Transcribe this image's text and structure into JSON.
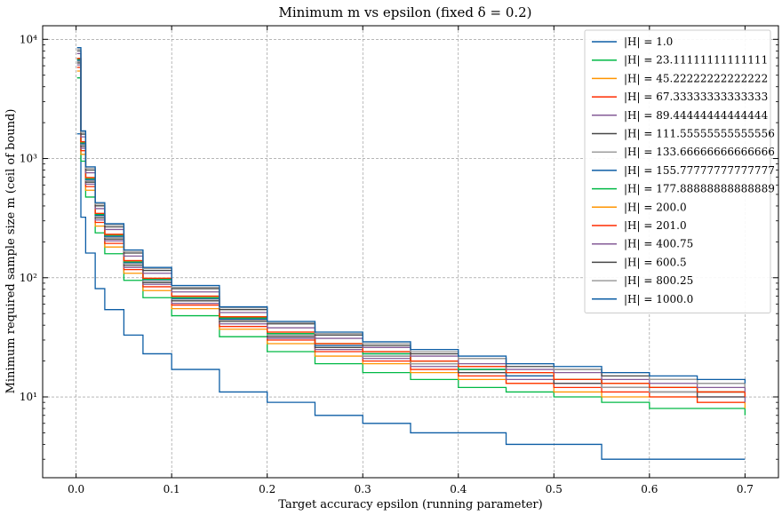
{
  "chart_data": {
    "type": "line",
    "title": "Minimum m vs epsilon (fixed δ = 0.2)",
    "xlabel": "Target accuracy epsilon (running parameter)",
    "ylabel": "Minimum required sample size m (ceil of bound)",
    "xlim": [
      -0.035,
      0.735
    ],
    "ylim": [
      2.1,
      13000
    ],
    "yscale": "log",
    "grid": true,
    "legend_position": "top-right",
    "x_ticks": [
      0.0,
      0.1,
      0.2,
      0.3,
      0.4,
      0.5,
      0.6,
      0.7
    ],
    "x_tick_labels": [
      "0.0",
      "0.1",
      "0.2",
      "0.3",
      "0.4",
      "0.5",
      "0.6",
      "0.7"
    ],
    "y_ticks": [
      10,
      100,
      1000,
      10000
    ],
    "y_tick_labels": [
      "10¹",
      "10²",
      "10³",
      "10⁴"
    ],
    "x": [
      0.001,
      0.005,
      0.01,
      0.02,
      0.03,
      0.05,
      0.07,
      0.1,
      0.15,
      0.2,
      0.25,
      0.3,
      0.35,
      0.4,
      0.45,
      0.5,
      0.55,
      0.6,
      0.65,
      0.7
    ],
    "series": [
      {
        "name": "|H| = 1.0",
        "color": "#0C5DA5",
        "values": [
          1610,
          322,
          161,
          81,
          54,
          33,
          23,
          17,
          11,
          9,
          7,
          6,
          5,
          5,
          4,
          4,
          3,
          3,
          3,
          3
        ]
      },
      {
        "name": "|H| = 23.11111111111111",
        "color": "#00B945",
        "values": [
          4750,
          950,
          475,
          238,
          159,
          95,
          68,
          48,
          32,
          24,
          19,
          16,
          14,
          12,
          11,
          10,
          9,
          8,
          8,
          7
        ]
      },
      {
        "name": "|H| = 45.22222222222222",
        "color": "#FF9500",
        "values": [
          5420,
          1084,
          542,
          271,
          181,
          109,
          78,
          55,
          37,
          28,
          22,
          19,
          16,
          14,
          13,
          11,
          10,
          10,
          9,
          8
        ]
      },
      {
        "name": "|H| = 67.33333333333333",
        "color": "#FF2C00",
        "values": [
          5820,
          1164,
          582,
          291,
          194,
          117,
          84,
          59,
          39,
          30,
          24,
          20,
          17,
          15,
          13,
          12,
          11,
          10,
          9,
          9
        ]
      },
      {
        "name": "|H| = 89.44444444444444",
        "color": "#845B97",
        "values": [
          6100,
          1220,
          610,
          305,
          204,
          122,
          88,
          61,
          41,
          31,
          25,
          21,
          18,
          16,
          14,
          13,
          12,
          11,
          10,
          9
        ]
      },
      {
        "name": "|H| = 111.55555555555556",
        "color": "#474747",
        "values": [
          6330,
          1266,
          633,
          317,
          211,
          127,
          91,
          64,
          43,
          32,
          26,
          22,
          19,
          16,
          15,
          13,
          12,
          11,
          10,
          10
        ]
      },
      {
        "name": "|H| = 133.66666666666666",
        "color": "#9E9E9E",
        "values": [
          6510,
          1302,
          651,
          326,
          217,
          131,
          93,
          66,
          44,
          33,
          27,
          22,
          19,
          17,
          15,
          14,
          12,
          11,
          11,
          10
        ]
      },
      {
        "name": "|H| = 155.77777777777777",
        "color": "#0C5DA5",
        "values": [
          6660,
          1332,
          666,
          333,
          222,
          134,
          96,
          67,
          45,
          34,
          27,
          23,
          20,
          17,
          15,
          14,
          13,
          12,
          11,
          10
        ]
      },
      {
        "name": "|H| = 177.88888888888889",
        "color": "#00B945",
        "values": [
          6790,
          1358,
          679,
          340,
          227,
          136,
          97,
          68,
          46,
          34,
          28,
          23,
          20,
          17,
          16,
          14,
          13,
          12,
          11,
          10
        ]
      },
      {
        "name": "|H| = 200.0",
        "color": "#FF9500",
        "values": [
          6910,
          1382,
          691,
          346,
          231,
          139,
          99,
          70,
          47,
          35,
          28,
          24,
          20,
          18,
          16,
          14,
          13,
          12,
          11,
          10
        ]
      },
      {
        "name": "|H| = 201.0",
        "color": "#FF2C00",
        "values": [
          6915,
          1383,
          692,
          346,
          231,
          139,
          99,
          70,
          47,
          35,
          28,
          24,
          20,
          18,
          16,
          14,
          13,
          12,
          11,
          10
        ]
      },
      {
        "name": "|H| = 400.75",
        "color": "#845B97",
        "values": [
          7600,
          1520,
          760,
          380,
          254,
          152,
          109,
          76,
          51,
          38,
          31,
          26,
          22,
          19,
          17,
          16,
          14,
          13,
          12,
          11
        ]
      },
      {
        "name": "|H| = 600.5",
        "color": "#474747",
        "values": [
          8010,
          1602,
          801,
          401,
          267,
          161,
          115,
          81,
          54,
          41,
          33,
          27,
          23,
          21,
          18,
          17,
          15,
          14,
          13,
          12
        ]
      },
      {
        "name": "|H| = 800.25",
        "color": "#9E9E9E",
        "values": [
          8290,
          1658,
          829,
          415,
          277,
          166,
          119,
          83,
          56,
          42,
          34,
          28,
          24,
          21,
          19,
          17,
          16,
          14,
          13,
          12
        ]
      },
      {
        "name": "|H| = 1000.0",
        "color": "#0C5DA5",
        "values": [
          8520,
          1704,
          852,
          426,
          284,
          171,
          122,
          86,
          57,
          43,
          35,
          29,
          25,
          22,
          19,
          18,
          16,
          15,
          14,
          13
        ]
      }
    ]
  }
}
